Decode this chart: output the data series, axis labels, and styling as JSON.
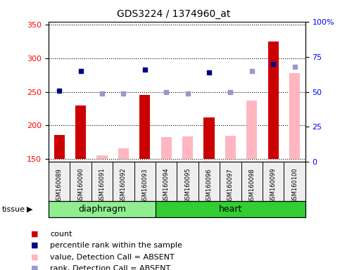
{
  "title": "GDS3224 / 1374960_at",
  "samples": [
    "GSM160089",
    "GSM160090",
    "GSM160091",
    "GSM160092",
    "GSM160093",
    "GSM160094",
    "GSM160095",
    "GSM160096",
    "GSM160097",
    "GSM160098",
    "GSM160099",
    "GSM160100"
  ],
  "tissue_groups": [
    {
      "label": "diaphragm",
      "start": 0,
      "end": 4,
      "color": "#90EE90"
    },
    {
      "label": "heart",
      "start": 5,
      "end": 11,
      "color": "#32CD32"
    }
  ],
  "count_values": [
    185,
    230,
    null,
    null,
    245,
    null,
    null,
    212,
    null,
    null,
    325,
    null
  ],
  "count_color": "#CC0000",
  "absent_value_values": [
    null,
    null,
    155,
    165,
    null,
    182,
    183,
    null,
    184,
    237,
    null,
    278
  ],
  "absent_value_color": "#FFB6C1",
  "percentile_rank_values": [
    51,
    65,
    null,
    null,
    66,
    null,
    null,
    64,
    null,
    null,
    70,
    null
  ],
  "percentile_rank_color": "#00008B",
  "absent_rank_values": [
    null,
    null,
    49,
    49,
    null,
    50,
    49,
    null,
    50,
    65,
    null,
    68
  ],
  "absent_rank_color": "#9999CC",
  "ylim_left": [
    145,
    355
  ],
  "ylim_right": [
    0,
    100
  ],
  "yticks_left": [
    150,
    200,
    250,
    300,
    350
  ],
  "yticks_right": [
    0,
    25,
    50,
    75,
    100
  ],
  "baseline": 150,
  "bg_color": "#EEEEEE",
  "plot_bg": "#FFFFFF"
}
